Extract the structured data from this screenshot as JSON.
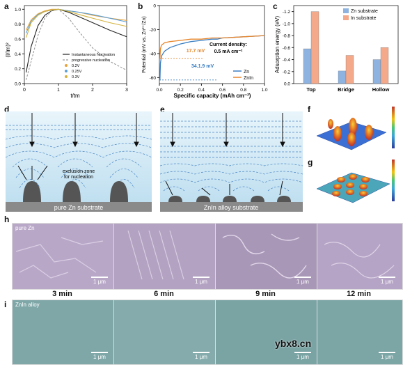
{
  "panels": {
    "a": {
      "label": "a"
    },
    "b": {
      "label": "b"
    },
    "c": {
      "label": "c"
    },
    "d": {
      "label": "d",
      "substrate": "pure Zn substrate",
      "annotation": "exclusion zone\nfor nucleation"
    },
    "e": {
      "label": "e",
      "substrate": "ZnIn alloy substrate"
    },
    "f": {
      "label": "f"
    },
    "g": {
      "label": "g"
    },
    "h": {
      "label": "h",
      "row_label": "pure Zn"
    },
    "i": {
      "label": "i",
      "row_label": "ZnIn alloy"
    }
  },
  "chart_a": {
    "type": "line",
    "xlabel": "t/tm",
    "ylabel": "(I/Im)²",
    "xticks": [
      "0",
      "1",
      "2",
      "3"
    ],
    "yticks": [
      "0.0",
      "0.2",
      "0.4",
      "0.6",
      "0.8",
      "1.0"
    ],
    "xlim": [
      0,
      3
    ],
    "ylim": [
      0,
      1.05
    ],
    "legend": [
      "Instantaneous Nucleation",
      "progressive nucleation",
      "0.2V",
      "0.25V",
      "0.3V"
    ],
    "legend_colors": [
      "#222222",
      "#9a9a9a",
      "#e8a33c",
      "#5aa0d8",
      "#d4b23a"
    ],
    "series": [
      {
        "name": "Instantaneous Nucleation",
        "color": "#222222",
        "x": [
          0.05,
          0.2,
          0.4,
          0.6,
          0.8,
          1.0,
          1.3,
          1.6,
          2.0,
          2.5,
          3.0
        ],
        "y": [
          0.15,
          0.5,
          0.78,
          0.92,
          0.98,
          1.0,
          0.96,
          0.9,
          0.82,
          0.72,
          0.63
        ]
      },
      {
        "name": "progressive nucleation",
        "color": "#9a9a9a",
        "x": [
          0.05,
          0.2,
          0.4,
          0.6,
          0.8,
          1.0,
          1.3,
          1.6,
          2.0,
          2.5,
          3.0
        ],
        "y": [
          0.05,
          0.3,
          0.65,
          0.88,
          0.98,
          1.0,
          0.88,
          0.7,
          0.48,
          0.3,
          0.18
        ]
      },
      {
        "name": "0.2V",
        "color": "#e8a33c",
        "x": [
          0.05,
          0.2,
          0.4,
          0.6,
          0.8,
          1.0,
          1.3,
          1.6,
          2.0,
          2.5,
          3.0
        ],
        "y": [
          0.72,
          0.86,
          0.94,
          0.98,
          1.0,
          1.0,
          0.98,
          0.96,
          0.92,
          0.88,
          0.85
        ]
      },
      {
        "name": "0.25V",
        "color": "#5aa0d8",
        "x": [
          0.05,
          0.2,
          0.4,
          0.6,
          0.8,
          1.0,
          1.3,
          1.6,
          2.0,
          2.5,
          3.0
        ],
        "y": [
          0.68,
          0.84,
          0.93,
          0.97,
          0.99,
          1.0,
          0.98,
          0.96,
          0.93,
          0.88,
          0.83
        ]
      },
      {
        "name": "0.3V",
        "color": "#d4b23a",
        "x": [
          0.05,
          0.2,
          0.4,
          0.6,
          0.8,
          1.0,
          1.3,
          1.6,
          2.0,
          2.5,
          3.0
        ],
        "y": [
          0.62,
          0.82,
          0.92,
          0.97,
          0.99,
          1.0,
          0.97,
          0.93,
          0.88,
          0.82,
          0.77
        ]
      }
    ]
  },
  "chart_b": {
    "type": "line",
    "xlabel": "Specific capacity (mAh cm⁻²)",
    "ylabel": "Potential (mV vs. Zn²⁺/Zn)",
    "xticks": [
      "0.0",
      "0.2",
      "0.4",
      "0.6",
      "0.8",
      "1.0"
    ],
    "yticks": [
      "0",
      "-20",
      "-40",
      "-60"
    ],
    "xlim": [
      0,
      1.0
    ],
    "ylim": [
      -65,
      0
    ],
    "annotation_density": "Current density:\n0.5 mA cm⁻²",
    "overpotential_znin": "17.7 mV",
    "overpotential_zn": "34.1.9 mV",
    "legend": [
      "Zn",
      "ZnIn"
    ],
    "legend_colors": [
      "#3a7ec2",
      "#e8852a"
    ],
    "series": [
      {
        "name": "Zn",
        "color": "#3a7ec2",
        "x": [
          0.0,
          0.005,
          0.01,
          0.02,
          0.05,
          0.1,
          0.2,
          0.3,
          0.4,
          0.5,
          0.55,
          0.6,
          0.8,
          1.0
        ],
        "y": [
          -62,
          -62,
          -48,
          -42,
          -38,
          -35,
          -32,
          -30,
          -29,
          -28,
          -28,
          -27,
          -26,
          -25
        ]
      },
      {
        "name": "ZnIn",
        "color": "#e8852a",
        "x": [
          0.0,
          0.005,
          0.01,
          0.02,
          0.05,
          0.1,
          0.2,
          0.3,
          0.4,
          0.5,
          0.6,
          0.8,
          1.0
        ],
        "y": [
          -44,
          -44,
          -36,
          -33,
          -31,
          -30,
          -29,
          -28,
          -28,
          -27,
          -27,
          -26,
          -25
        ]
      }
    ]
  },
  "chart_c": {
    "type": "bar",
    "ylabel": "Adsorption energy (eV)",
    "categories": [
      "Top",
      "Bridge",
      "Hollow"
    ],
    "yticks": [
      "0.0",
      "-0.2",
      "-0.4",
      "-0.6",
      "-0.8",
      "-1.0",
      "-1.2"
    ],
    "ylim": [
      0,
      -1.3
    ],
    "legend": [
      "Zn substrate",
      "In substrate"
    ],
    "series": [
      {
        "name": "Zn substrate",
        "color": "#8fb3e0",
        "values": [
          -0.58,
          -0.21,
          -0.4
        ]
      },
      {
        "name": "In substrate",
        "color": "#f4a98a",
        "values": [
          -1.2,
          -0.47,
          -0.6
        ]
      }
    ]
  },
  "sem_times": [
    "3 min",
    "6 min",
    "9 min",
    "12 min"
  ],
  "scale_bar": "1 μm",
  "watermark": "ybx8.cn",
  "colors": {
    "sem_zn": "#b9a7c8",
    "sem_znin": "#7fa7a8",
    "substrate": "#8a8a8a",
    "field_bg": "#d7ecf6"
  }
}
